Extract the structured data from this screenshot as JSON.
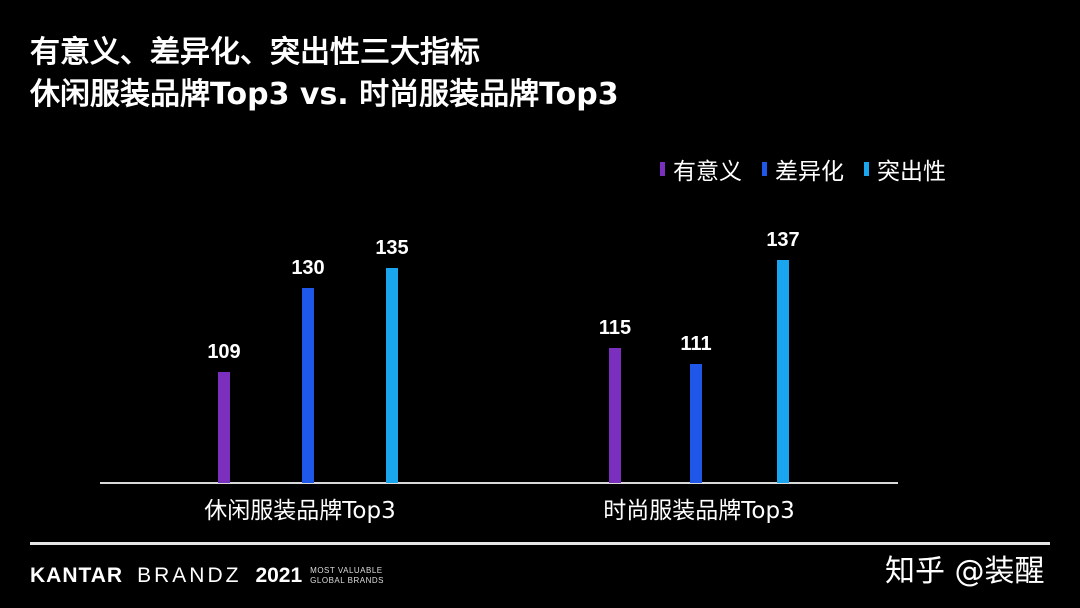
{
  "title_line1": "有意义、差异化、突出性三大指标",
  "title_line2": "休闲服装品牌Top3 vs. 时尚服装品牌Top3",
  "chart_data": {
    "type": "bar",
    "categories": [
      "休闲服装品牌Top3",
      "时尚服装品牌Top3"
    ],
    "series": [
      {
        "name": "有意义",
        "color": "#7b2fbe",
        "values": [
          109,
          115
        ]
      },
      {
        "name": "差异化",
        "color": "#1f57e8",
        "values": [
          130,
          111
        ]
      },
      {
        "name": "突出性",
        "color": "#19a6ee",
        "values": [
          135,
          137
        ]
      }
    ],
    "ylim": [
      0,
      140
    ],
    "grid": false,
    "legend": "top-right",
    "data_labels": true
  },
  "footer": {
    "kantar": "KANTAR",
    "brandz": "BRANDZ",
    "year": "2021",
    "tag_line1": "MOST VALUABLE",
    "tag_line2": "GLOBAL BRANDS"
  },
  "watermark": "知乎 @装醒"
}
